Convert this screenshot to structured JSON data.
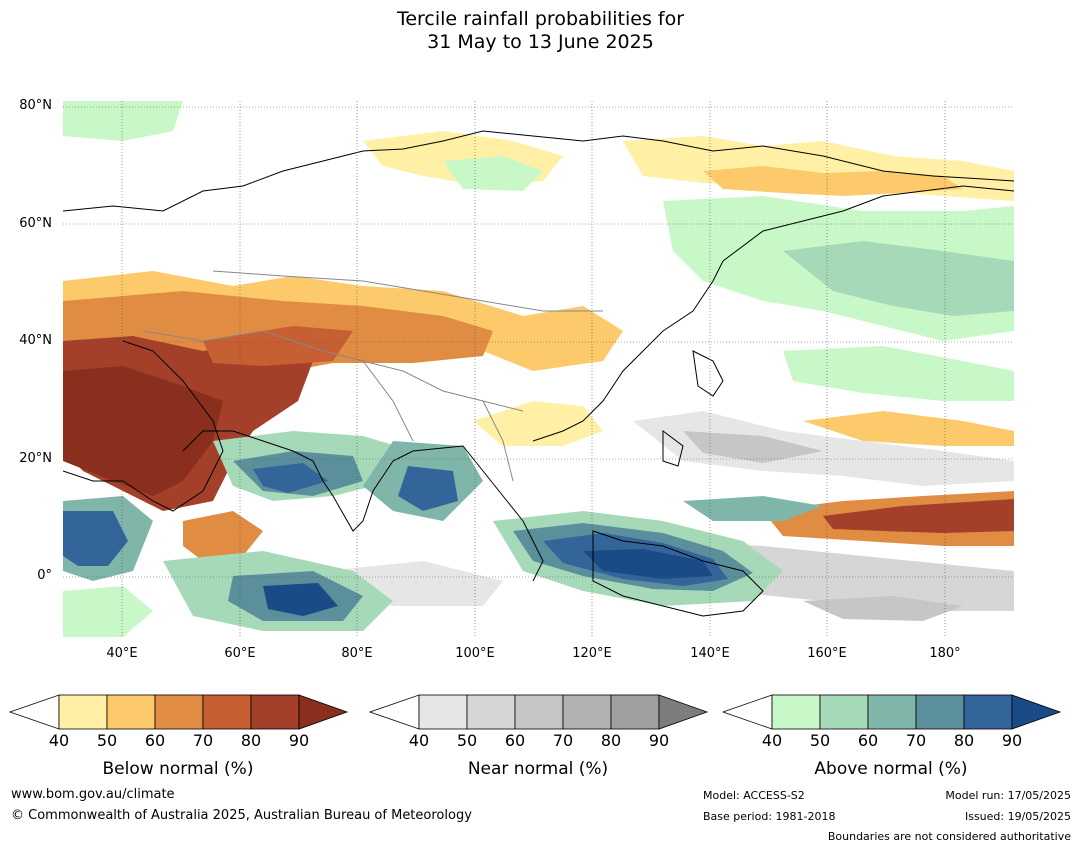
{
  "title": {
    "line1": "Tercile rainfall probabilities for",
    "line2": "31 May to 13 June 2025"
  },
  "map": {
    "lat_labels": [
      "80°N",
      "60°N",
      "40°N",
      "20°N",
      "0°"
    ],
    "lon_labels": [
      "40°E",
      "60°E",
      "80°E",
      "100°E",
      "120°E",
      "140°E",
      "160°E",
      "180°"
    ]
  },
  "legends": {
    "ticks": [
      "40",
      "50",
      "60",
      "70",
      "80",
      "90"
    ],
    "below": {
      "title": "Below normal (%)",
      "colors": [
        "#fff0a6",
        "#fdca6b",
        "#e08c43",
        "#c65f32",
        "#a4402a",
        "#8a2e1d"
      ]
    },
    "near": {
      "title": "Near normal (%)",
      "colors": [
        "#e6e6e6",
        "#d6d6d6",
        "#c6c6c6",
        "#b2b2b2",
        "#9f9f9f",
        "#7d7d7d"
      ]
    },
    "above": {
      "title": "Above normal (%)",
      "colors": [
        "#c9f8c8",
        "#a6d9b8",
        "#80b6aa",
        "#5b8f9c",
        "#34659a",
        "#1a4b86"
      ]
    }
  },
  "footer": {
    "website": "www.bom.gov.au/climate",
    "copyright": "© Commonwealth of Australia 2025, Australian Bureau of Meteorology",
    "model": "Model: ACCESS-S2",
    "base_period": "Base period: 1981-2018",
    "model_run": "Model run: 17/05/2025",
    "issued": "Issued: 19/05/2025",
    "boundaries": "Boundaries are not considered authoritative"
  }
}
